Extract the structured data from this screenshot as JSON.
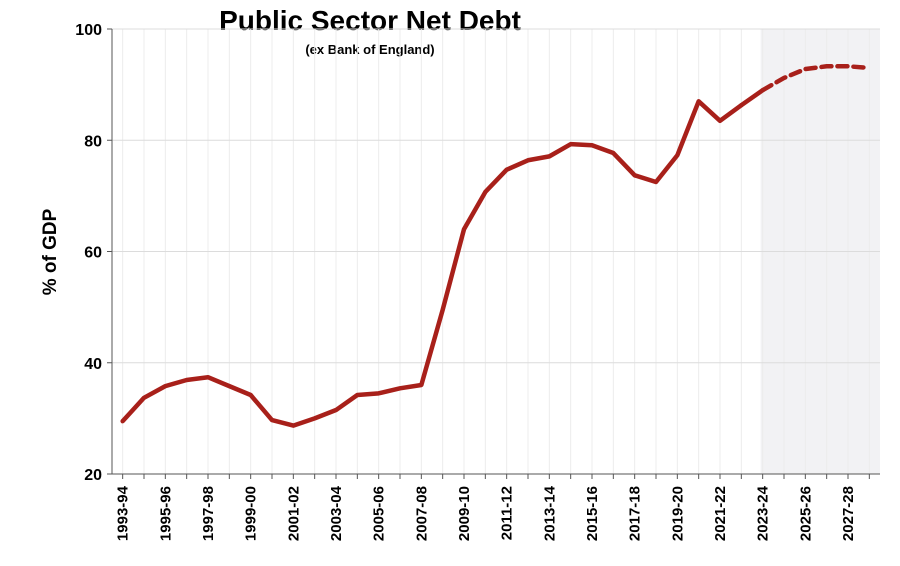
{
  "chart_data": {
    "type": "line",
    "title": "Public Sector Net Debt",
    "subtitle": "(ex Bank of England)",
    "y_label": "% of GDP",
    "categories": [
      "1993-94",
      null,
      "1995-96",
      null,
      "1997-98",
      null,
      "1999-00",
      null,
      "2001-02",
      null,
      "2003-04",
      null,
      "2005-06",
      null,
      "2007-08",
      null,
      "2009-10",
      null,
      "2011-12",
      null,
      "2013-14",
      null,
      "2015-16",
      null,
      "2017-18",
      null,
      "2019-20",
      null,
      "2021-22",
      null,
      "2023-24",
      null,
      "2025-26",
      null,
      "2027-28",
      null
    ],
    "series": [
      {
        "name": "Public Sector Net Debt",
        "color": "#a8201a",
        "values": [
          29.5,
          33.7,
          35.8,
          36.9,
          37.4,
          35.8,
          34.2,
          29.7,
          28.7,
          30,
          31.5,
          34.2,
          34.5,
          35.4,
          36,
          49.5,
          64,
          70.7,
          74.7,
          76.4,
          77.1,
          79.3,
          79.1,
          77.7,
          73.7,
          72.5,
          77.3,
          87,
          83.5,
          86.3,
          89,
          91.2,
          92.8,
          93.3,
          93.3,
          93
        ]
      }
    ],
    "forecast_from": "2023-24",
    "ylim": [
      20,
      100
    ],
    "yticks": [
      20,
      40,
      60,
      80,
      100
    ],
    "grid": true
  }
}
